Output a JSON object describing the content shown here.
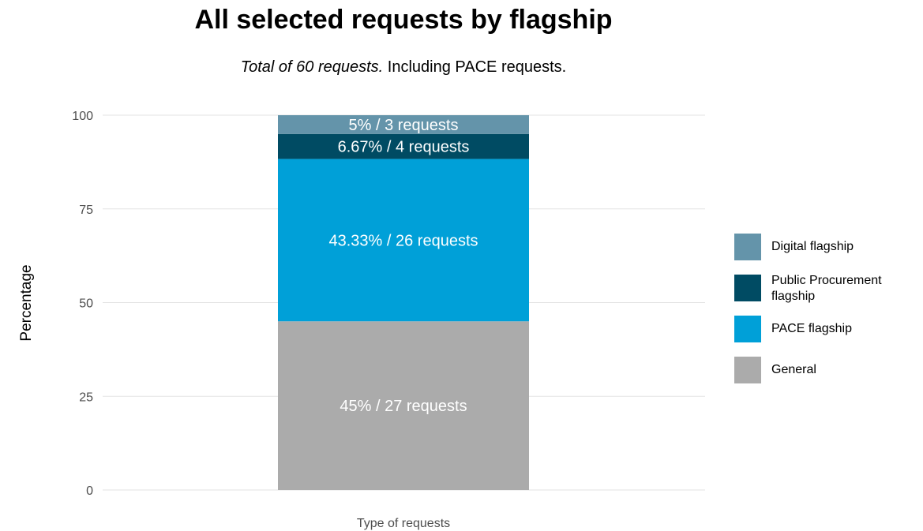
{
  "chart_data": {
    "type": "bar",
    "stacked": true,
    "title": "All selected requests by flagship",
    "subtitle_italic": "Total of 60 requests.",
    "subtitle_rest": " Including PACE requests.",
    "xlabel": "Type of requests",
    "ylabel": "Percentage",
    "ylim": [
      0,
      100
    ],
    "yticks": [
      "0",
      "25",
      "50",
      "75",
      "100"
    ],
    "grid": true,
    "legend_position": "right",
    "series": [
      {
        "name": "General",
        "value": 45,
        "label": "45% / 27 requests",
        "color": "#ababab"
      },
      {
        "name": "PACE flagship",
        "value": 43.33,
        "label": "43.33% / 26 requests",
        "color": "#00a0d8"
      },
      {
        "name": "Public Procurement flagship",
        "value": 6.67,
        "label": "6.67% / 4 requests",
        "color": "#004b63"
      },
      {
        "name": "Digital flagship",
        "value": 5,
        "label": "5% / 3 requests",
        "color": "#6494aa"
      }
    ],
    "legend_order": [
      "Digital flagship",
      "Public Procurement flagship",
      "PACE flagship",
      "General"
    ]
  }
}
